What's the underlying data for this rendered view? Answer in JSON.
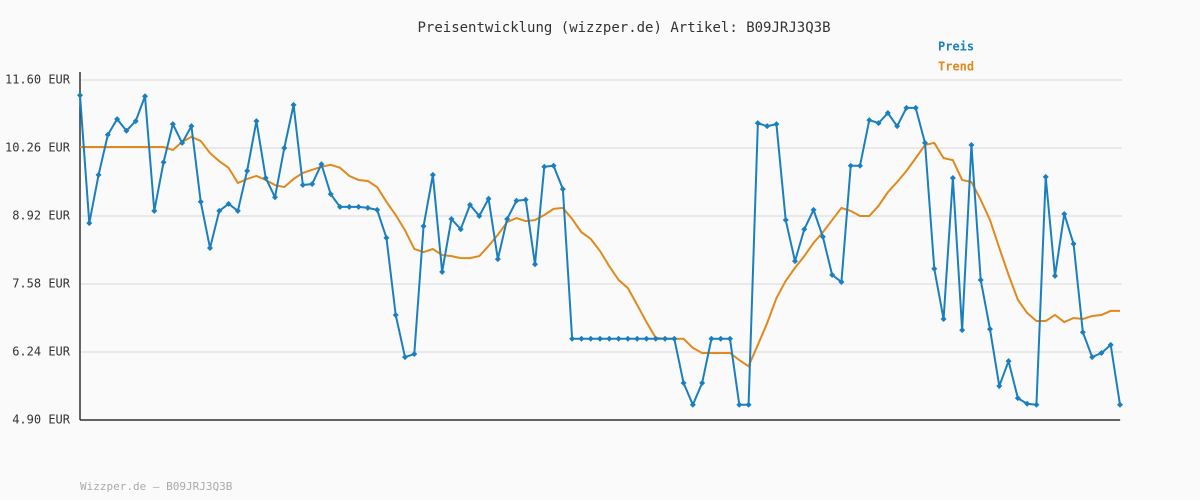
{
  "chart_data": {
    "type": "line",
    "title": "Preisentwicklung (wizzper.de) Artikel: B09JRJ3Q3B",
    "footer": "Wizzper.de – B09JRJ3Q3B",
    "ylim": [
      4.9,
      11.6
    ],
    "yticks": [
      {
        "value": 4.9,
        "label": "4.90 EUR"
      },
      {
        "value": 6.24,
        "label": "6.24 EUR"
      },
      {
        "value": 7.58,
        "label": "7.58 EUR"
      },
      {
        "value": 8.92,
        "label": "8.92 EUR"
      },
      {
        "value": 10.26,
        "label": "10.26 EUR"
      },
      {
        "value": 11.6,
        "label": "11.60 EUR"
      }
    ],
    "grid": true,
    "legend": "top-right",
    "series": [
      {
        "name": "Preis",
        "color": "#1a7fbf",
        "markers": true,
        "values": [
          11.3,
          8.78,
          9.73,
          10.52,
          10.83,
          10.6,
          10.79,
          11.28,
          9.02,
          9.98,
          10.73,
          10.36,
          10.69,
          9.2,
          8.29,
          9.02,
          9.16,
          9.02,
          9.81,
          10.79,
          9.67,
          9.29,
          10.26,
          11.11,
          9.53,
          9.55,
          9.94,
          9.35,
          9.1,
          9.1,
          9.1,
          9.08,
          9.04,
          8.49,
          6.97,
          6.14,
          6.2,
          8.72,
          9.73,
          7.82,
          8.86,
          8.66,
          9.14,
          8.92,
          9.26,
          8.07,
          8.86,
          9.22,
          9.24,
          7.97,
          9.89,
          9.91,
          9.45,
          6.5,
          6.5,
          6.5,
          6.5,
          6.5,
          6.5,
          6.5,
          6.5,
          6.5,
          6.5,
          6.5,
          6.5,
          5.63,
          5.2,
          5.63,
          6.5,
          6.5,
          6.5,
          5.2,
          5.2,
          10.75,
          10.69,
          10.73,
          8.84,
          8.03,
          8.66,
          9.04,
          8.51,
          7.76,
          7.62,
          9.91,
          9.91,
          10.81,
          10.75,
          10.95,
          10.69,
          11.05,
          11.05,
          10.36,
          7.88,
          6.89,
          9.67,
          6.67,
          10.32,
          7.66,
          6.69,
          5.57,
          6.06,
          5.33,
          5.22,
          5.2,
          9.69,
          7.74,
          8.96,
          8.37,
          6.63,
          6.14,
          6.22,
          6.38,
          5.2
        ]
      },
      {
        "name": "Trend",
        "color": "#e08a1e",
        "markers": false,
        "values": [
          10.28,
          10.28,
          10.28,
          10.28,
          10.28,
          10.28,
          10.28,
          10.28,
          10.28,
          10.28,
          10.22,
          10.38,
          10.48,
          10.4,
          10.16,
          10.0,
          9.87,
          9.57,
          9.65,
          9.71,
          9.63,
          9.53,
          9.49,
          9.65,
          9.77,
          9.83,
          9.89,
          9.93,
          9.87,
          9.71,
          9.63,
          9.61,
          9.49,
          9.2,
          8.94,
          8.64,
          8.27,
          8.21,
          8.27,
          8.15,
          8.13,
          8.09,
          8.09,
          8.13,
          8.33,
          8.55,
          8.8,
          8.88,
          8.82,
          8.84,
          8.94,
          9.06,
          9.08,
          8.86,
          8.6,
          8.47,
          8.23,
          7.93,
          7.66,
          7.5,
          7.17,
          6.83,
          6.52,
          6.5,
          6.5,
          6.5,
          6.32,
          6.22,
          6.22,
          6.22,
          6.22,
          6.08,
          5.96,
          6.38,
          6.81,
          7.3,
          7.64,
          7.9,
          8.13,
          8.39,
          8.6,
          8.84,
          9.08,
          9.02,
          8.92,
          8.92,
          9.12,
          9.39,
          9.59,
          9.81,
          10.06,
          10.32,
          10.36,
          10.06,
          10.02,
          9.63,
          9.59,
          9.24,
          8.84,
          8.29,
          7.76,
          7.27,
          7.01,
          6.85,
          6.85,
          6.97,
          6.83,
          6.91,
          6.89,
          6.95,
          6.97,
          7.05,
          7.05
        ]
      }
    ]
  }
}
